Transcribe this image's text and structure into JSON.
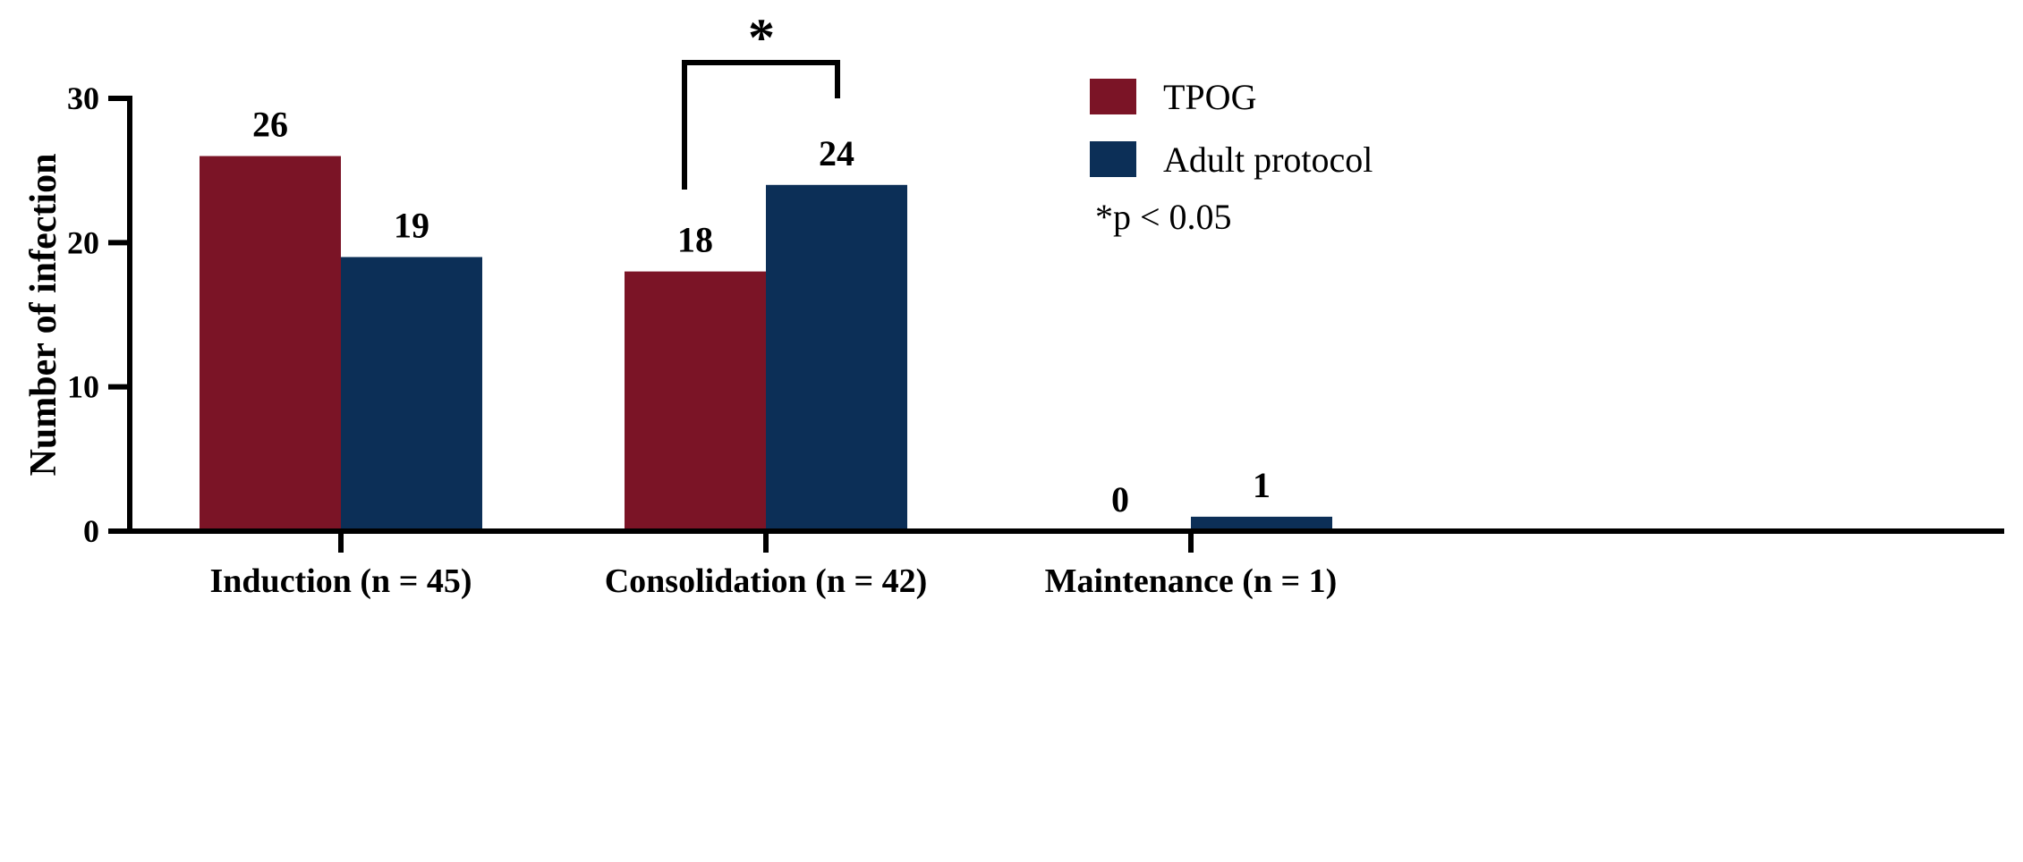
{
  "chart_data": {
    "type": "bar",
    "categories": [
      "Induction (n = 45)",
      "Consolidation (n = 42)",
      "Maintenance (n = 1)"
    ],
    "series": [
      {
        "name": "TPOG",
        "values": [
          26,
          18,
          0
        ],
        "color": "#7b1426"
      },
      {
        "name": "Adult protocol",
        "values": [
          19,
          24,
          1
        ],
        "color": "#0c2f57"
      }
    ],
    "ylabel": "Number of infection",
    "xlabel": "",
    "ylim": [
      0,
      30
    ],
    "yticks": [
      0,
      10,
      20,
      30
    ],
    "legend_position": "top-right",
    "legend_note": "*p < 0.05",
    "significance": {
      "category": "Consolidation (n = 42)",
      "marker": "*"
    }
  }
}
